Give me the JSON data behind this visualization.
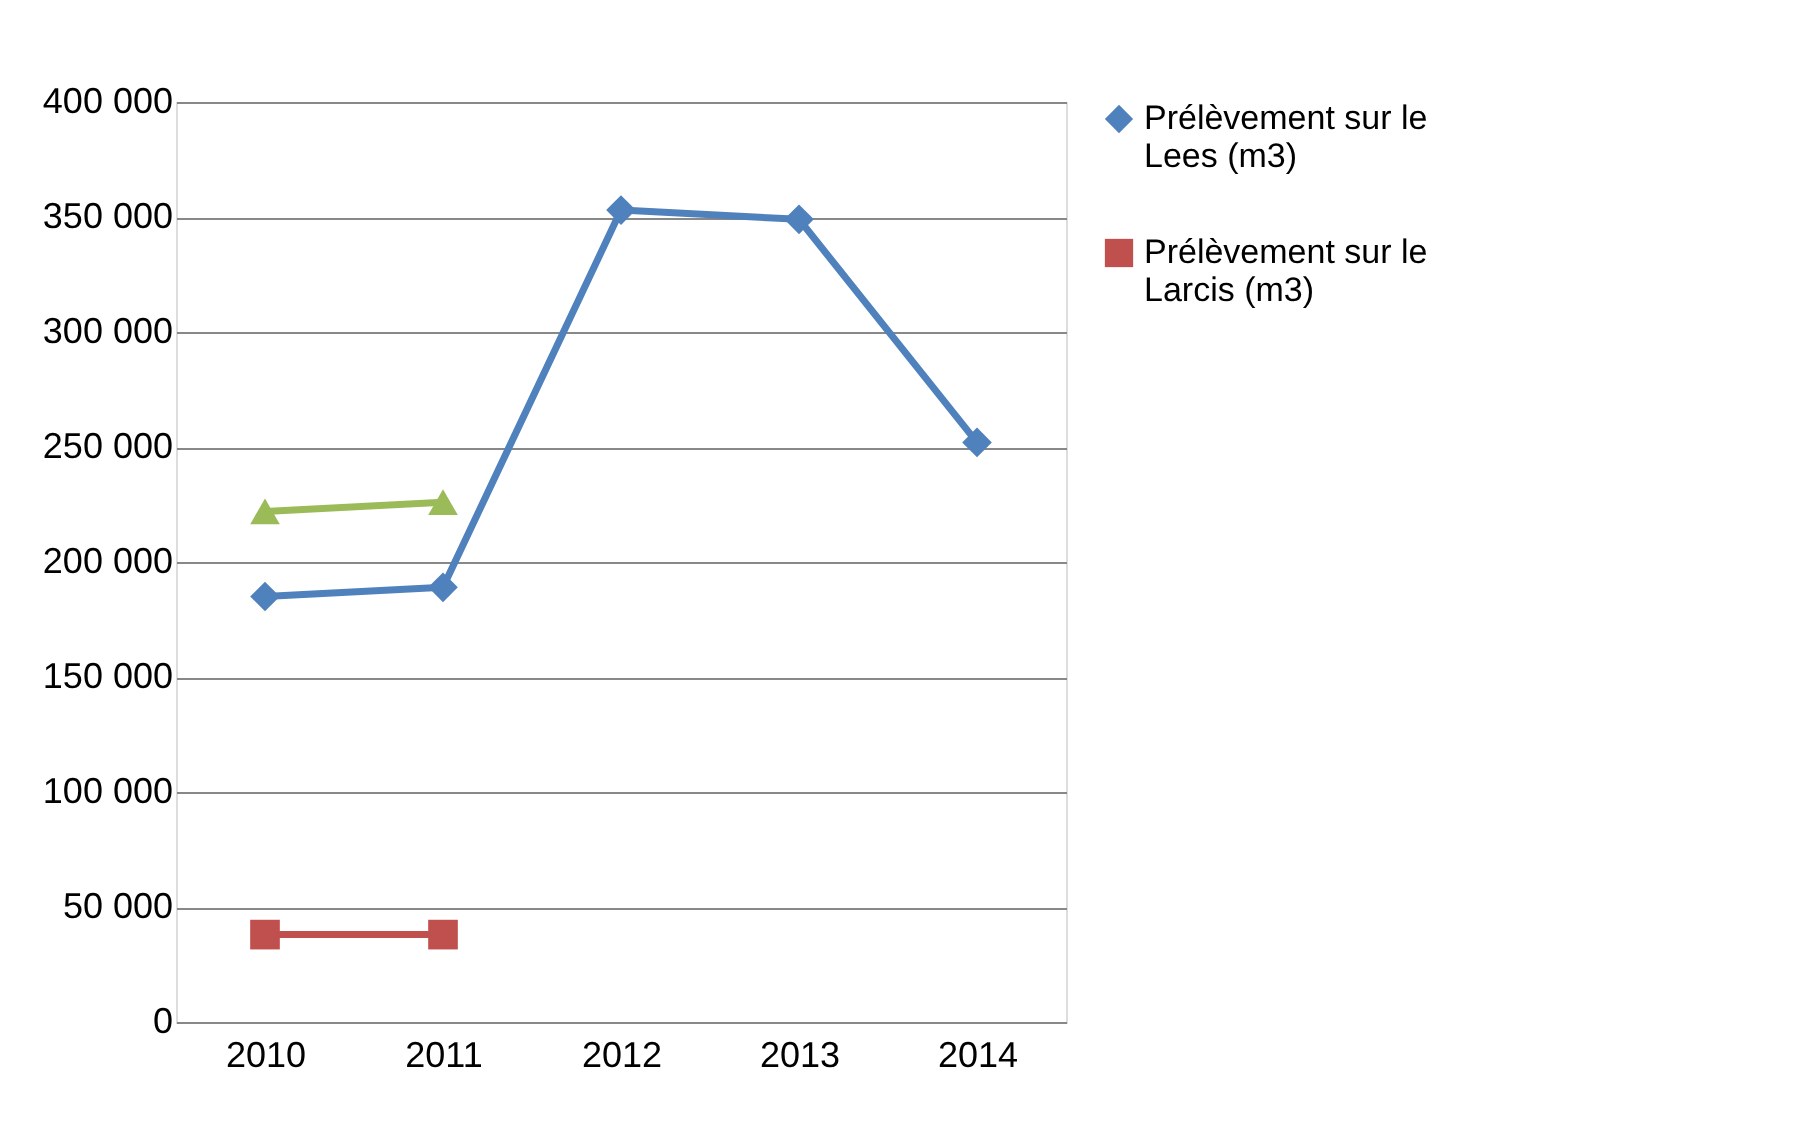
{
  "chart_data": {
    "type": "line",
    "categories": [
      "2010",
      "2011",
      "2012",
      "2013",
      "2014"
    ],
    "series": [
      {
        "name": "Prélèvement sur le Lees (m3)",
        "color": "#4f81bd",
        "marker": "diamond",
        "values": [
          185000,
          189000,
          353000,
          349000,
          252000
        ]
      },
      {
        "name": "Prélèvement sur le Larcis (m3)",
        "color": "#c0504d",
        "marker": "square",
        "values": [
          38000,
          38000,
          null,
          null,
          null
        ]
      },
      {
        "color": "#9bbb59",
        "marker": "triangle",
        "values": [
          222000,
          226000,
          null,
          null,
          null
        ]
      }
    ],
    "ylim": [
      0,
      400000
    ],
    "yticks": [
      {
        "value": 0,
        "label": "0"
      },
      {
        "value": 50000,
        "label": "50 000"
      },
      {
        "value": 100000,
        "label": "100 000"
      },
      {
        "value": 150000,
        "label": "150 000"
      },
      {
        "value": 200000,
        "label": "200 000"
      },
      {
        "value": 250000,
        "label": "250 000"
      },
      {
        "value": 300000,
        "label": "300 000"
      },
      {
        "value": 350000,
        "label": "350 000"
      },
      {
        "value": 400000,
        "label": "400 000"
      }
    ],
    "grid": "y",
    "legend": "right"
  }
}
